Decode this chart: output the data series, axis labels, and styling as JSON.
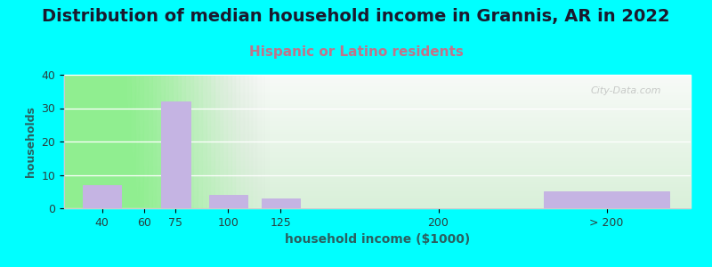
{
  "title": "Distribution of median household income in Grannis, AR in 2022",
  "subtitle": "Hispanic or Latino residents",
  "xlabel": "household income ($1000)",
  "ylabel": "households",
  "categories": [
    "40",
    "60",
    "75",
    "100",
    "125",
    "200",
    "> 200"
  ],
  "x_positions": [
    40,
    60,
    75,
    100,
    125,
    200,
    280
  ],
  "bar_widths": [
    18,
    14,
    14,
    18,
    18,
    30,
    60
  ],
  "values": [
    7,
    0,
    32,
    4,
    3,
    0,
    5
  ],
  "bar_color": "#c5b4e3",
  "bar_edgecolor": "#b39ddb",
  "background_outer": "#00ffff",
  "plot_bg_color_top_right": "#f8f8f8",
  "plot_bg_color_bottom_left": "#d8eeda",
  "ylim": [
    0,
    40
  ],
  "yticks": [
    0,
    10,
    20,
    30,
    40
  ],
  "xlim": [
    22,
    320
  ],
  "xtick_positions": [
    40,
    60,
    75,
    100,
    125,
    200,
    280
  ],
  "title_fontsize": 14,
  "subtitle_fontsize": 11,
  "subtitle_color": "#c0748a",
  "title_color": "#1a1a2e",
  "axis_label_color": "#2a6060",
  "tick_color": "#2a4040",
  "ylabel_fontsize": 9,
  "xlabel_fontsize": 10,
  "watermark": "City-Data.com"
}
